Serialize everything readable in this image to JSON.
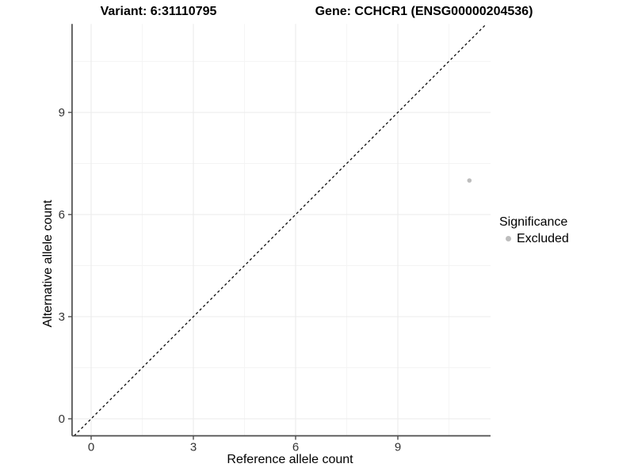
{
  "titles": {
    "variant": "Variant: 6:31110795",
    "gene": "Gene: CCHCR1 (ENSG00000204536)"
  },
  "legend": {
    "title": "Significance",
    "entries": [
      {
        "label": "Excluded",
        "color": "#bdbdbd"
      }
    ]
  },
  "chart_data": {
    "type": "scatter",
    "title": "Variant: 6:31110795 — Gene: CCHCR1 (ENSG00000204536)",
    "xlabel": "Reference allele count",
    "ylabel": "Alternative allele count",
    "xlim": [
      -0.56,
      11.72
    ],
    "ylim": [
      -0.5,
      11.6
    ],
    "x_ticks": [
      0,
      3,
      6,
      9
    ],
    "y_ticks": [
      0,
      3,
      6,
      9
    ],
    "x_minor_ticks": [
      1.5,
      4.5,
      7.5,
      10.5
    ],
    "y_minor_ticks": [
      1.5,
      4.5,
      7.5,
      10.5
    ],
    "grid": true,
    "legend_position": "right",
    "series": [
      {
        "name": "Excluded",
        "color": "#bdbdbd",
        "points": [
          {
            "x": 11.1,
            "y": 7.0
          }
        ]
      }
    ],
    "reference_line": {
      "type": "identity",
      "slope": 1,
      "intercept": 0,
      "style": "dashed",
      "color": "#000000"
    },
    "colors": {
      "grid_major": "#ebebeb",
      "grid_minor": "#f4f4f4",
      "axis_line": "#4d4d4d",
      "tick_label": "#333333",
      "point": "#bdbdbd"
    }
  }
}
